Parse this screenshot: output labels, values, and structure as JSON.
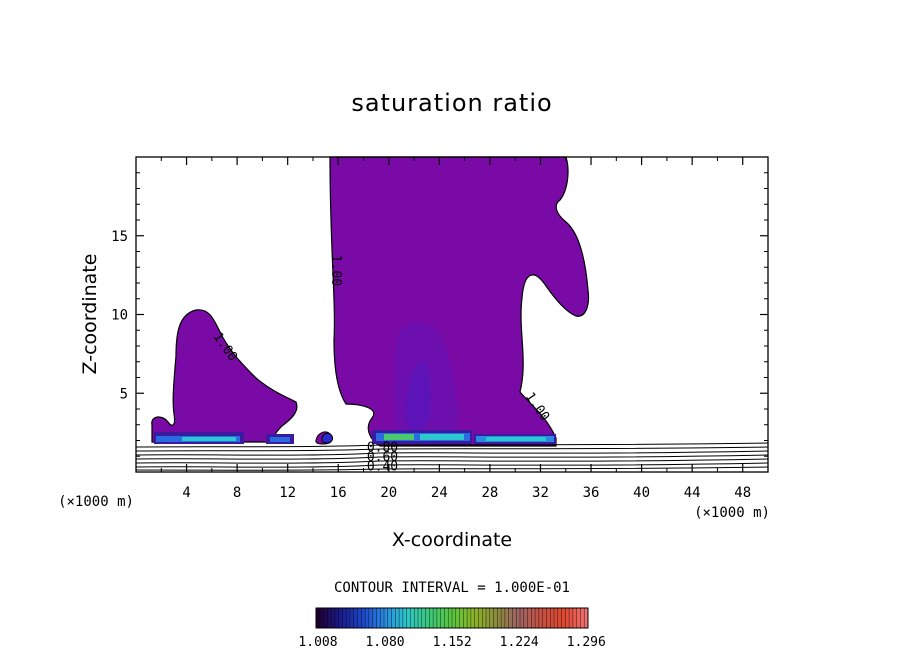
{
  "chart_data": {
    "type": "contour",
    "title": "saturation ratio",
    "xlabel": "X-coordinate",
    "ylabel": "Z-coordinate",
    "x_unit_left": "(×1000 m)",
    "x_unit_right": "(×1000 m)",
    "xlim": [
      0,
      50
    ],
    "ylim": [
      0,
      20
    ],
    "x_ticks": [
      4,
      8,
      12,
      16,
      20,
      24,
      28,
      32,
      36,
      40,
      44,
      48
    ],
    "y_ticks": [
      5,
      10,
      15
    ],
    "contour_interval_text": "CONTOUR INTERVAL = 1.000E-01",
    "contour_labels": [
      {
        "text": "1.00",
        "x": 15.5,
        "z": 12.8
      },
      {
        "text": "1.00",
        "x": 6.8,
        "z": 7.8
      },
      {
        "text": "1.00",
        "x": 31.5,
        "z": 4.0
      },
      {
        "text": "0.80",
        "x": 19.5,
        "z": 1.3
      },
      {
        "text": "0.60",
        "x": 19.5,
        "z": 0.7
      },
      {
        "text": "0.40",
        "x": 19.5,
        "z": 0.1
      }
    ],
    "colorbar": {
      "tick_labels": [
        "1.008",
        "1.080",
        "1.152",
        "1.224",
        "1.296"
      ],
      "min": 1.008,
      "max": 1.3,
      "colors": [
        "#200030",
        "#1a1a8c",
        "#1e46c8",
        "#2a8ae0",
        "#2cc8c8",
        "#3cc878",
        "#5ac840",
        "#8cb428",
        "#8c8c3c",
        "#a06464",
        "#c85040",
        "#e04830",
        "#f07070"
      ]
    },
    "filled_regions": [
      {
        "name": "left cloud",
        "max_height": 10.3,
        "x_range": [
          1.2,
          12.4
        ],
        "value_range": [
          1.0,
          1.008
        ]
      },
      {
        "name": "main cloud",
        "max_height": 20,
        "x_range": [
          15.3,
          35.5
        ],
        "value_range": [
          1.0,
          1.008
        ]
      },
      {
        "name": "core",
        "max_height": 9.5,
        "x_range": [
          20.5,
          25.5
        ],
        "value_range": [
          1.008,
          1.03
        ]
      }
    ]
  }
}
